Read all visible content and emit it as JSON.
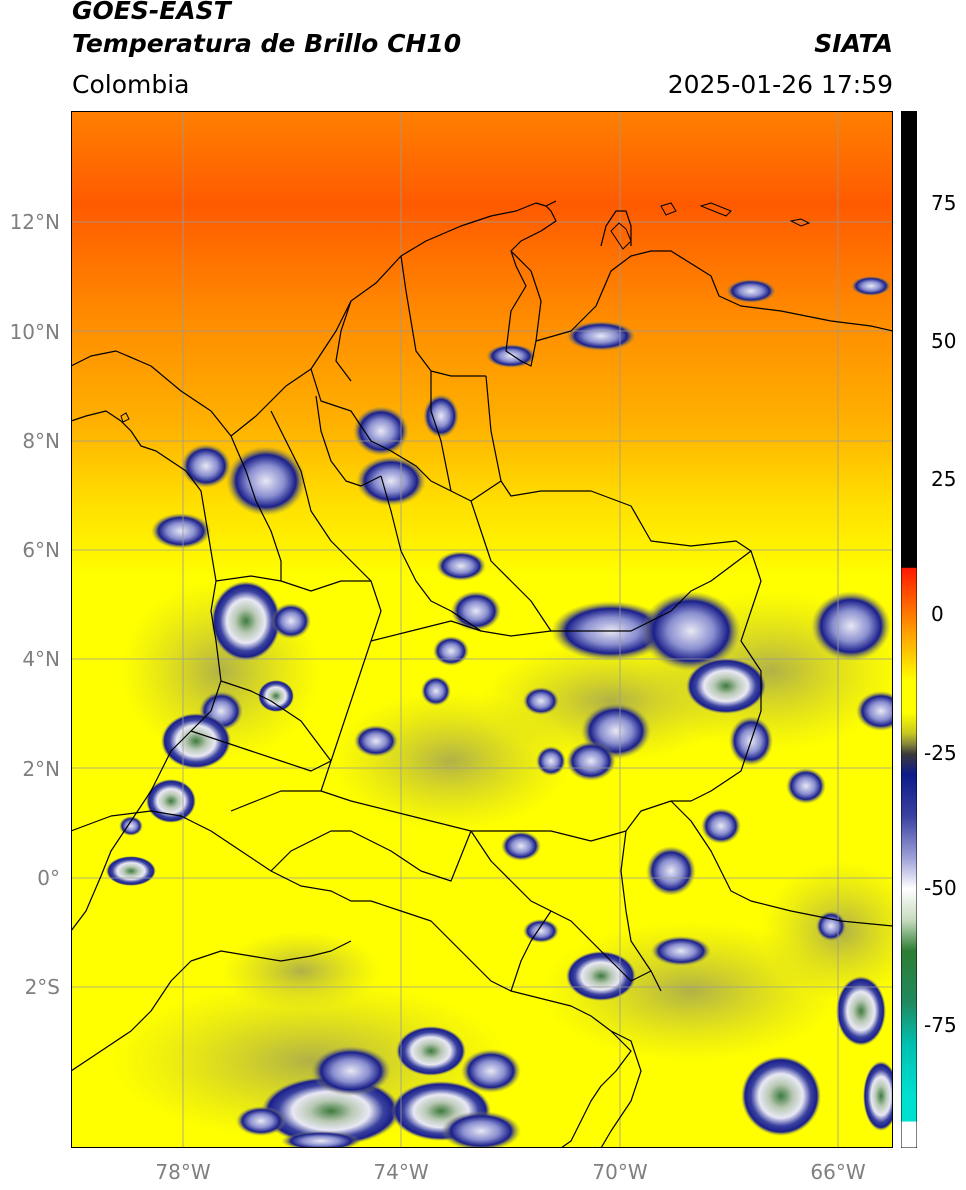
{
  "header": {
    "title_line1": "GOES-EAST",
    "title_line2": "Temperatura de Brillo CH10",
    "region": "Colombia",
    "source": "SIATA",
    "timestamp": "2025-01-26 17:59"
  },
  "axes": {
    "lat_ticks": [
      "12°N",
      "10°N",
      "8°N",
      "6°N",
      "4°N",
      "2°N",
      "0°",
      "2°S"
    ],
    "lon_ticks": [
      "78°W",
      "74°W",
      "70°W",
      "66°W"
    ]
  },
  "colorbar": {
    "ticks": [
      "75",
      "50",
      "25",
      "0",
      "-25",
      "-50",
      "-75"
    ],
    "colors": {
      "black": "#000000",
      "red": "#ff1a00",
      "orange": "#ff9900",
      "yellow": "#ffff00",
      "olive": "#8a8a3a",
      "navy": "#0d1a8a",
      "white": "#ffffff",
      "green": "#2e7d32",
      "cyan": "#00e0d0"
    }
  },
  "map_colors": {
    "warm_red": "#ff5a00",
    "orange": "#ff9a00",
    "yellow": "#ffff00",
    "olive_cloud": "#9c9c50",
    "deep_cloud": "#1a1f8a",
    "cold_top": "#e8e8f4",
    "coldest": "#3d7a3d",
    "border": "#000000",
    "grid": "#9a9a9a"
  }
}
